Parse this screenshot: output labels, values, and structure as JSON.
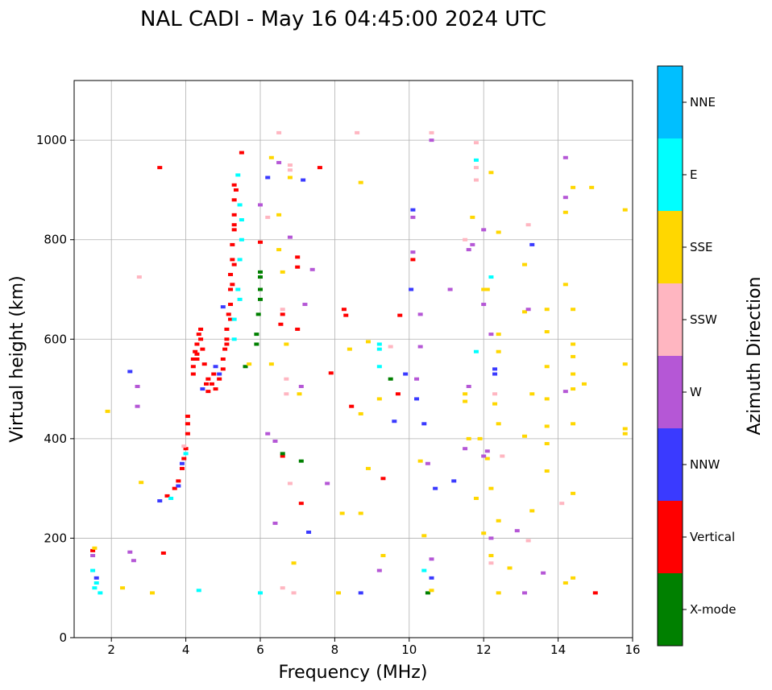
{
  "chart_data": {
    "type": "scatter",
    "title": "NAL CADI - May 16 04:45:00 2024 UTC",
    "xlabel": "Frequency (MHz)",
    "ylabel": "Virtual height (km)",
    "xlim": [
      1,
      16
    ],
    "ylim": [
      0,
      1120
    ],
    "xticks": [
      2,
      4,
      6,
      8,
      10,
      12,
      14,
      16
    ],
    "yticks": [
      0,
      200,
      400,
      600,
      800,
      1000
    ],
    "grid": true,
    "colorbar": {
      "label": "Azimuth Direction",
      "categories": [
        "X-mode",
        "Vertical",
        "NNW",
        "W",
        "SSW",
        "SSE",
        "E",
        "NNE"
      ],
      "colors": [
        "#008000",
        "#ff0000",
        "#3a3aff",
        "#b557d6",
        "#ffb6c1",
        "#ffd700",
        "#00ffff",
        "#00bfff"
      ]
    },
    "points_format": [
      "frequency_mhz",
      "height_km",
      "category_index"
    ],
    "points": [
      [
        3.5,
        285,
        1
      ],
      [
        3.7,
        300,
        1
      ],
      [
        3.8,
        315,
        1
      ],
      [
        3.9,
        340,
        1
      ],
      [
        3.95,
        360,
        1
      ],
      [
        4.0,
        380,
        1
      ],
      [
        4.05,
        410,
        1
      ],
      [
        4.05,
        430,
        1
      ],
      [
        4.05,
        445,
        1
      ],
      [
        4.2,
        530,
        1
      ],
      [
        4.2,
        545,
        1
      ],
      [
        4.2,
        560,
        1
      ],
      [
        4.3,
        570,
        1
      ],
      [
        4.3,
        590,
        1
      ],
      [
        4.35,
        610,
        1
      ],
      [
        4.4,
        620,
        1
      ],
      [
        4.45,
        580,
        1
      ],
      [
        4.5,
        550,
        1
      ],
      [
        4.6,
        520,
        1
      ],
      [
        4.7,
        510,
        1
      ],
      [
        4.8,
        500,
        1
      ],
      [
        4.9,
        520,
        1
      ],
      [
        5.0,
        540,
        1
      ],
      [
        5.0,
        560,
        1
      ],
      [
        5.05,
        580,
        1
      ],
      [
        5.1,
        600,
        1
      ],
      [
        5.1,
        620,
        1
      ],
      [
        5.15,
        650,
        1
      ],
      [
        5.2,
        670,
        1
      ],
      [
        5.2,
        700,
        1
      ],
      [
        5.2,
        730,
        1
      ],
      [
        5.25,
        760,
        1
      ],
      [
        5.25,
        790,
        1
      ],
      [
        5.3,
        820,
        1
      ],
      [
        5.3,
        850,
        1
      ],
      [
        5.3,
        880,
        1
      ],
      [
        5.3,
        910,
        1
      ],
      [
        5.5,
        975,
        1
      ],
      [
        5.1,
        590,
        1
      ],
      [
        4.55,
        510,
        1
      ],
      [
        4.4,
        600,
        1
      ],
      [
        4.3,
        560,
        1
      ],
      [
        4.6,
        495,
        1
      ],
      [
        4.75,
        530,
        1
      ],
      [
        4.25,
        575,
        1
      ],
      [
        5.2,
        640,
        1
      ],
      [
        5.25,
        710,
        1
      ],
      [
        5.3,
        750,
        1
      ],
      [
        5.3,
        830,
        1
      ],
      [
        5.35,
        900,
        1
      ],
      [
        8.25,
        660,
        1
      ],
      [
        8.3,
        648,
        1
      ],
      [
        8.45,
        465,
        1
      ],
      [
        7.0,
        765,
        1
      ],
      [
        7.0,
        745,
        1
      ],
      [
        6.6,
        650,
        1
      ],
      [
        6.55,
        630,
        1
      ],
      [
        6.6,
        365,
        1
      ],
      [
        7.0,
        620,
        1
      ],
      [
        9.3,
        320,
        1
      ],
      [
        9.75,
        648,
        1
      ],
      [
        10.1,
        760,
        1
      ],
      [
        15.0,
        90,
        1
      ],
      [
        3.4,
        170,
        1
      ],
      [
        3.3,
        945,
        1
      ],
      [
        7.6,
        945,
        1
      ],
      [
        7.9,
        532,
        1
      ],
      [
        9.7,
        490,
        1
      ],
      [
        7.1,
        270,
        1
      ],
      [
        1.5,
        175,
        1
      ],
      [
        6.0,
        795,
        1
      ],
      [
        5.3,
        640,
        6
      ],
      [
        5.4,
        700,
        6
      ],
      [
        5.45,
        760,
        6
      ],
      [
        5.5,
        800,
        6
      ],
      [
        5.5,
        840,
        6
      ],
      [
        5.45,
        870,
        6
      ],
      [
        5.4,
        930,
        6
      ],
      [
        5.3,
        600,
        6
      ],
      [
        4.0,
        370,
        6
      ],
      [
        3.6,
        280,
        6
      ],
      [
        1.55,
        100,
        6
      ],
      [
        1.6,
        110,
        6
      ],
      [
        1.5,
        135,
        6
      ],
      [
        5.45,
        680,
        6
      ],
      [
        9.2,
        590,
        6
      ],
      [
        9.2,
        580,
        6
      ],
      [
        9.2,
        545,
        6
      ],
      [
        10.4,
        135,
        6
      ],
      [
        11.8,
        960,
        6
      ],
      [
        12.2,
        725,
        6
      ],
      [
        11.8,
        575,
        6
      ],
      [
        1.7,
        90,
        6
      ],
      [
        6.0,
        90,
        6
      ],
      [
        4.35,
        95,
        6
      ],
      [
        3.8,
        305,
        2
      ],
      [
        4.9,
        530,
        2
      ],
      [
        5.0,
        665,
        2
      ],
      [
        3.9,
        350,
        2
      ],
      [
        4.45,
        500,
        2
      ],
      [
        1.6,
        120,
        2
      ],
      [
        2.5,
        535,
        2
      ],
      [
        6.2,
        925,
        2
      ],
      [
        7.15,
        920,
        2
      ],
      [
        10.1,
        860,
        2
      ],
      [
        10.05,
        700,
        2
      ],
      [
        12.3,
        530,
        2
      ],
      [
        13.3,
        790,
        2
      ],
      [
        10.4,
        430,
        2
      ],
      [
        10.7,
        300,
        2
      ],
      [
        11.2,
        315,
        2
      ],
      [
        8.7,
        90,
        2
      ],
      [
        12.3,
        540,
        2
      ],
      [
        10.6,
        120,
        2
      ],
      [
        9.6,
        435,
        2
      ],
      [
        9.9,
        530,
        2
      ],
      [
        10.2,
        480,
        2
      ],
      [
        4.8,
        545,
        2
      ],
      [
        3.3,
        275,
        2
      ],
      [
        7.3,
        212,
        2
      ],
      [
        6.0,
        725,
        0
      ],
      [
        6.0,
        700,
        0
      ],
      [
        5.95,
        650,
        0
      ],
      [
        5.9,
        610,
        0
      ],
      [
        5.9,
        590,
        0
      ],
      [
        6.6,
        370,
        0
      ],
      [
        7.1,
        355,
        0
      ],
      [
        9.5,
        520,
        0
      ],
      [
        10.5,
        90,
        0
      ],
      [
        5.6,
        545,
        0
      ],
      [
        6.0,
        735,
        0
      ],
      [
        6.0,
        680,
        0
      ],
      [
        6.3,
        965,
        5
      ],
      [
        6.5,
        850,
        5
      ],
      [
        6.8,
        925,
        5
      ],
      [
        6.5,
        780,
        5
      ],
      [
        6.6,
        735,
        5
      ],
      [
        6.7,
        590,
        5
      ],
      [
        6.3,
        550,
        5
      ],
      [
        7.05,
        490,
        5
      ],
      [
        8.7,
        915,
        5
      ],
      [
        8.9,
        595,
        5
      ],
      [
        8.9,
        340,
        5
      ],
      [
        8.7,
        250,
        5
      ],
      [
        9.2,
        480,
        5
      ],
      [
        9.3,
        165,
        5
      ],
      [
        10.4,
        205,
        5
      ],
      [
        10.3,
        355,
        5
      ],
      [
        11.6,
        400,
        5
      ],
      [
        11.5,
        475,
        5
      ],
      [
        11.7,
        845,
        5
      ],
      [
        12.0,
        700,
        5
      ],
      [
        12.2,
        935,
        5
      ],
      [
        12.4,
        815,
        5
      ],
      [
        12.4,
        610,
        5
      ],
      [
        12.4,
        575,
        5
      ],
      [
        12.3,
        470,
        5
      ],
      [
        12.4,
        430,
        5
      ],
      [
        12.7,
        140,
        5
      ],
      [
        12.4,
        90,
        5
      ],
      [
        13.1,
        750,
        5
      ],
      [
        13.1,
        655,
        5
      ],
      [
        13.1,
        405,
        5
      ],
      [
        13.3,
        490,
        5
      ],
      [
        13.3,
        255,
        5
      ],
      [
        13.7,
        660,
        5
      ],
      [
        13.7,
        615,
        5
      ],
      [
        13.7,
        545,
        5
      ],
      [
        13.7,
        480,
        5
      ],
      [
        13.7,
        425,
        5
      ],
      [
        13.7,
        390,
        5
      ],
      [
        13.7,
        335,
        5
      ],
      [
        14.2,
        855,
        5
      ],
      [
        14.2,
        710,
        5
      ],
      [
        14.4,
        905,
        5
      ],
      [
        14.4,
        660,
        5
      ],
      [
        14.4,
        590,
        5
      ],
      [
        14.4,
        565,
        5
      ],
      [
        14.4,
        530,
        5
      ],
      [
        14.4,
        500,
        5
      ],
      [
        14.4,
        430,
        5
      ],
      [
        14.4,
        290,
        5
      ],
      [
        14.4,
        120,
        5
      ],
      [
        14.2,
        110,
        5
      ],
      [
        14.9,
        905,
        5
      ],
      [
        14.7,
        510,
        5
      ],
      [
        15.8,
        860,
        5
      ],
      [
        15.8,
        550,
        5
      ],
      [
        15.8,
        420,
        5
      ],
      [
        15.8,
        410,
        5
      ],
      [
        8.2,
        250,
        5
      ],
      [
        8.7,
        450,
        5
      ],
      [
        8.1,
        90,
        5
      ],
      [
        2.3,
        100,
        5
      ],
      [
        2.8,
        312,
        5
      ],
      [
        1.9,
        455,
        5
      ],
      [
        1.55,
        180,
        5
      ],
      [
        12.1,
        700,
        5
      ],
      [
        11.9,
        400,
        5
      ],
      [
        12.1,
        360,
        5
      ],
      [
        12.2,
        300,
        5
      ],
      [
        12.0,
        210,
        5
      ],
      [
        12.2,
        165,
        5
      ],
      [
        12.4,
        235,
        5
      ],
      [
        10.6,
        95,
        5
      ],
      [
        11.5,
        490,
        5
      ],
      [
        11.8,
        280,
        5
      ],
      [
        8.4,
        580,
        5
      ],
      [
        5.7,
        550,
        5
      ],
      [
        6.9,
        150,
        5
      ],
      [
        3.1,
        90,
        5
      ],
      [
        6.2,
        845,
        4
      ],
      [
        6.8,
        950,
        4
      ],
      [
        6.8,
        940,
        4
      ],
      [
        6.6,
        660,
        4
      ],
      [
        6.7,
        490,
        4
      ],
      [
        6.7,
        520,
        4
      ],
      [
        6.8,
        310,
        4
      ],
      [
        6.6,
        100,
        4
      ],
      [
        2.75,
        725,
        4
      ],
      [
        3.95,
        385,
        4
      ],
      [
        11.5,
        800,
        4
      ],
      [
        11.8,
        920,
        4
      ],
      [
        11.8,
        995,
        4
      ],
      [
        11.8,
        945,
        4
      ],
      [
        12.3,
        490,
        4
      ],
      [
        12.5,
        365,
        4
      ],
      [
        13.2,
        830,
        4
      ],
      [
        13.2,
        195,
        4
      ],
      [
        14.1,
        270,
        4
      ],
      [
        9.5,
        585,
        4
      ],
      [
        8.6,
        1015,
        4
      ],
      [
        10.6,
        1015,
        4
      ],
      [
        12.2,
        150,
        4
      ],
      [
        6.5,
        1015,
        4
      ],
      [
        6.9,
        90,
        4
      ],
      [
        6.0,
        870,
        3
      ],
      [
        6.5,
        955,
        3
      ],
      [
        6.2,
        410,
        3
      ],
      [
        6.4,
        230,
        3
      ],
      [
        6.4,
        395,
        3
      ],
      [
        7.4,
        740,
        3
      ],
      [
        7.2,
        670,
        3
      ],
      [
        7.1,
        505,
        3
      ],
      [
        10.1,
        775,
        3
      ],
      [
        10.1,
        845,
        3
      ],
      [
        10.3,
        650,
        3
      ],
      [
        10.2,
        520,
        3
      ],
      [
        10.3,
        585,
        3
      ],
      [
        11.6,
        780,
        3
      ],
      [
        11.7,
        790,
        3
      ],
      [
        12.0,
        670,
        3
      ],
      [
        12.0,
        820,
        3
      ],
      [
        12.2,
        610,
        3
      ],
      [
        12.0,
        365,
        3
      ],
      [
        12.2,
        200,
        3
      ],
      [
        12.1,
        375,
        3
      ],
      [
        12.9,
        215,
        3
      ],
      [
        13.6,
        130,
        3
      ],
      [
        14.2,
        965,
        3
      ],
      [
        14.2,
        885,
        3
      ],
      [
        14.2,
        495,
        3
      ],
      [
        10.5,
        350,
        3
      ],
      [
        10.6,
        1000,
        3
      ],
      [
        11.1,
        700,
        3
      ],
      [
        11.5,
        380,
        3
      ],
      [
        11.6,
        505,
        3
      ],
      [
        7.8,
        310,
        3
      ],
      [
        2.6,
        155,
        3
      ],
      [
        2.7,
        505,
        3
      ],
      [
        2.7,
        465,
        3
      ],
      [
        2.5,
        172,
        3
      ],
      [
        1.5,
        165,
        3
      ],
      [
        13.2,
        660,
        3
      ],
      [
        9.2,
        135,
        3
      ],
      [
        6.8,
        805,
        3
      ],
      [
        13.1,
        90,
        3
      ],
      [
        10.6,
        158,
        3
      ]
    ]
  }
}
